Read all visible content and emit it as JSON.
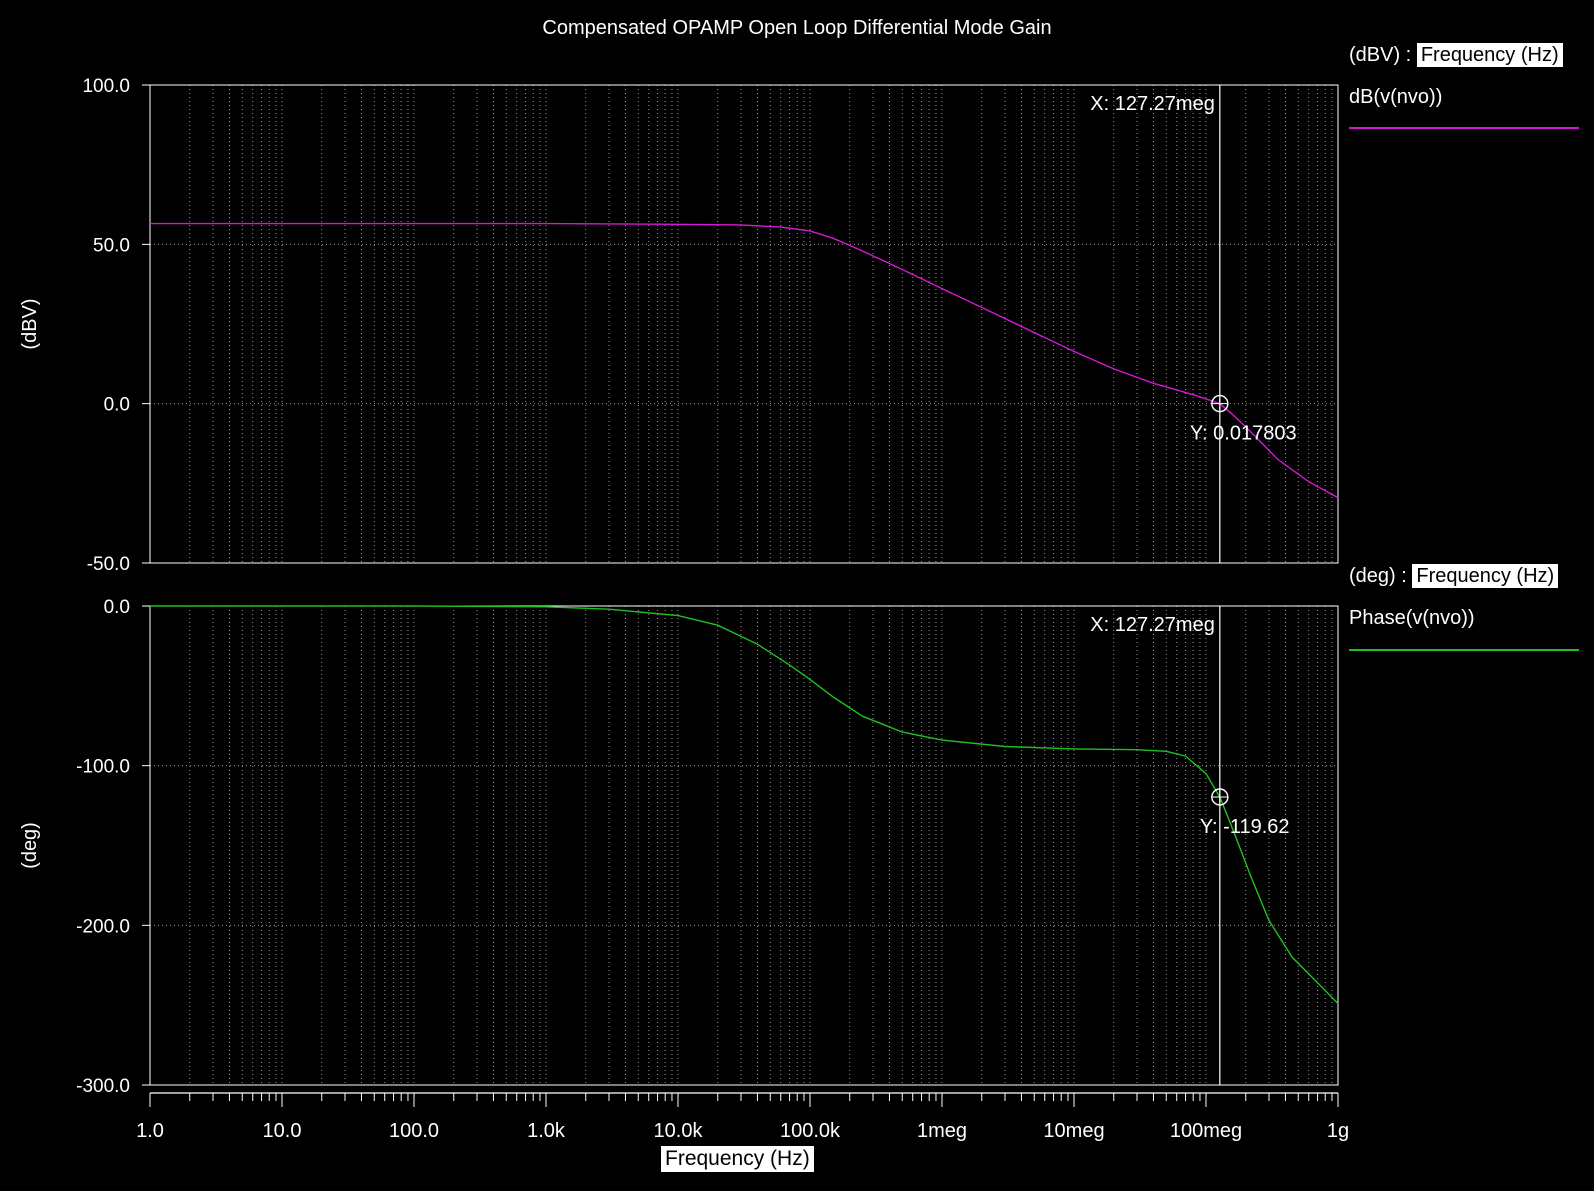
{
  "chart_data": {
    "type": "line",
    "title": "Compensated OPAMP Open Loop Differential Mode Gain",
    "xlabel": "Frequency (Hz)",
    "x_scale": "log",
    "xlim": [
      1,
      1000000000
    ],
    "x_ticks": [
      {
        "value": 1,
        "label": "1.0"
      },
      {
        "value": 10,
        "label": "10.0"
      },
      {
        "value": 100,
        "label": "100.0"
      },
      {
        "value": 1000,
        "label": "1.0k"
      },
      {
        "value": 10000,
        "label": "10.0k"
      },
      {
        "value": 100000,
        "label": "100.0k"
      },
      {
        "value": 1000000,
        "label": "1meg"
      },
      {
        "value": 10000000,
        "label": "10meg"
      },
      {
        "value": 100000000,
        "label": "100meg"
      },
      {
        "value": 1000000000,
        "label": "1g"
      }
    ],
    "panels": [
      {
        "ylabel": "(dBV)",
        "ylim": [
          -50,
          100
        ],
        "y_ticks": [
          {
            "value": 100,
            "label": "100.0"
          },
          {
            "value": 50,
            "label": "50.0"
          },
          {
            "value": 0,
            "label": "0.0"
          },
          {
            "value": -50,
            "label": "-50.0"
          }
        ],
        "legend_unit": "(dBV) :",
        "legend_axis": "Frequency (Hz)",
        "series": [
          {
            "name": "dB(v(nvo))",
            "color": "#d21ad2",
            "x": [
              1,
              10,
              100,
              1000,
              10000,
              30000,
              60000,
              100000,
              150000,
              250000,
              500000,
              1000000,
              2000000,
              5000000,
              10000000,
              20000000,
              40000000,
              80000000,
              127270000,
              160000000,
              220000000,
              350000000,
              600000000,
              1000000000
            ],
            "y": [
              56.5,
              56.5,
              56.5,
              56.5,
              56.3,
              56.1,
              55.4,
              54.2,
              51.9,
              47.9,
              42.1,
              36.1,
              30.2,
              22.3,
              16.4,
              10.9,
              6.4,
              2.8,
              0.02,
              -3.5,
              -9.0,
              -17.5,
              -24.5,
              -29.5
            ]
          }
        ],
        "cursor": {
          "x_label": "X: 127.27meg",
          "y_label": "Y: 0.017803",
          "x": 127270000,
          "y": 0.017803
        }
      },
      {
        "ylabel": "(deg)",
        "ylim": [
          -300,
          0
        ],
        "y_ticks": [
          {
            "value": 0,
            "label": "0.0"
          },
          {
            "value": -100,
            "label": "-100.0"
          },
          {
            "value": -200,
            "label": "-200.0"
          },
          {
            "value": -300,
            "label": "-300.0"
          }
        ],
        "legend_unit": "(deg) :",
        "legend_axis": "Frequency (Hz)",
        "series": [
          {
            "name": "Phase(v(nvo))",
            "color": "#20c020",
            "x": [
              1,
              10,
              100,
              1000,
              3000,
              10000,
              20000,
              40000,
              70000,
              100000,
              150000,
              250000,
              500000,
              1000000,
              3000000,
              10000000,
              30000000,
              50000000,
              70000000,
              100000000,
              127270000,
              160000000,
              220000000,
              300000000,
              450000000,
              700000000,
              1000000000
            ],
            "y": [
              0,
              0,
              0,
              -0.5,
              -2,
              -6,
              -12,
              -24,
              -37,
              -46,
              -57,
              -69,
              -79,
              -84,
              -88,
              -89.5,
              -90,
              -91,
              -94,
              -105,
              -119.62,
              -140,
              -170,
              -197,
              -220,
              -236,
              -249
            ]
          }
        ],
        "cursor": {
          "x_label": "X: 127.27meg",
          "y_label": "Y: -119.62",
          "x": 127270000,
          "y": -119.62
        }
      }
    ],
    "grid": true
  }
}
